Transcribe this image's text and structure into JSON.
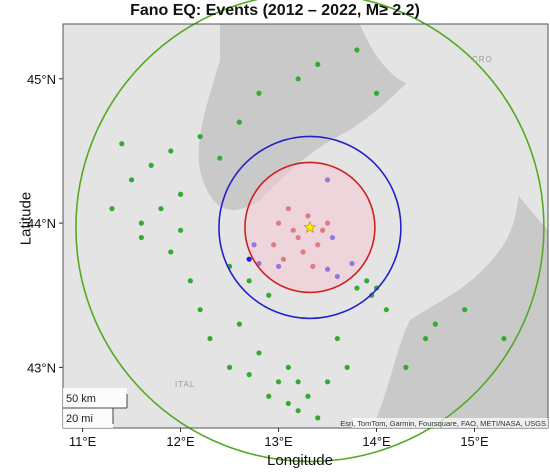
{
  "title": "Fano EQ: Events (2012 – 2022, M≥ 2.2)",
  "xlabel": "Longitude",
  "ylabel": "Latitude",
  "x_ticks": [
    {
      "value": 11,
      "label": "11°E"
    },
    {
      "value": 12,
      "label": "12°E"
    },
    {
      "value": 13,
      "label": "13°E"
    },
    {
      "value": 14,
      "label": "14°E"
    },
    {
      "value": 15,
      "label": "15°E"
    }
  ],
  "y_ticks": [
    {
      "value": 45,
      "label": "45°N"
    },
    {
      "value": 44,
      "label": "44°N"
    },
    {
      "value": 43,
      "label": "43°N"
    }
  ],
  "scalebar": {
    "km_label": "50 km",
    "mi_label": "20 mi"
  },
  "attribution": "Esri, TomTom, Garmin, Foursquare, FAO, METI/NASA, USGS",
  "map_labels": {
    "italy": "ITAL",
    "croatia": "CRO"
  },
  "colors": {
    "land": "#e4e4e4",
    "sea": "#c9c9c9",
    "green_events": "#33aa33",
    "blue_events": "#1a1aee",
    "red_events": "#bb2222",
    "outer_circle": "#55aa22",
    "middle_circle": "#2222cc",
    "inner_circle": "#cc2222",
    "inner_fill": "#f6c8d4",
    "epicenter": "#ffee00"
  },
  "chart_data": {
    "type": "scatter",
    "xlim": [
      10.8,
      15.75
    ],
    "ylim": [
      42.58,
      45.38
    ],
    "grid": false,
    "epicenter": {
      "lon": 13.32,
      "lat": 43.97
    },
    "circles_km": [
      {
        "radius_km": 50
      },
      {
        "radius_km": 70
      },
      {
        "radius_km": 180
      }
    ],
    "series": [
      {
        "color": "green",
        "points": [
          [
            11.5,
            44.3
          ],
          [
            11.6,
            44.0
          ],
          [
            11.8,
            44.1
          ],
          [
            11.9,
            43.8
          ],
          [
            12.0,
            44.2
          ],
          [
            12.1,
            43.6
          ],
          [
            12.2,
            43.4
          ],
          [
            12.3,
            43.2
          ],
          [
            12.5,
            43.0
          ],
          [
            12.6,
            43.3
          ],
          [
            12.8,
            43.1
          ],
          [
            12.9,
            42.8
          ],
          [
            13.0,
            42.9
          ],
          [
            13.1,
            42.75
          ],
          [
            13.2,
            42.7
          ],
          [
            13.3,
            42.8
          ],
          [
            13.4,
            42.65
          ],
          [
            13.2,
            42.9
          ],
          [
            13.1,
            43.0
          ],
          [
            12.7,
            42.95
          ],
          [
            11.7,
            44.4
          ],
          [
            12.4,
            44.45
          ],
          [
            11.9,
            44.5
          ],
          [
            12.2,
            44.6
          ],
          [
            12.6,
            44.7
          ],
          [
            12.8,
            44.9
          ],
          [
            13.2,
            45.0
          ],
          [
            13.4,
            45.1
          ],
          [
            13.8,
            45.2
          ],
          [
            14.0,
            44.9
          ],
          [
            13.8,
            43.55
          ],
          [
            13.9,
            43.6
          ],
          [
            14.0,
            43.55
          ],
          [
            13.95,
            43.5
          ],
          [
            14.1,
            43.4
          ],
          [
            14.5,
            43.2
          ],
          [
            14.6,
            43.3
          ],
          [
            14.9,
            43.4
          ],
          [
            15.3,
            43.2
          ],
          [
            14.3,
            43.0
          ],
          [
            11.4,
            44.55
          ],
          [
            11.3,
            44.1
          ],
          [
            11.6,
            43.9
          ],
          [
            12.0,
            43.95
          ],
          [
            12.5,
            43.7
          ],
          [
            12.7,
            43.6
          ],
          [
            12.9,
            43.5
          ],
          [
            13.6,
            43.2
          ],
          [
            13.7,
            43.0
          ],
          [
            13.5,
            42.9
          ]
        ]
      },
      {
        "color": "blue",
        "points": [
          [
            12.7,
            43.75
          ],
          [
            12.8,
            43.72
          ],
          [
            13.0,
            43.7
          ],
          [
            13.5,
            43.68
          ],
          [
            13.6,
            43.63
          ],
          [
            13.75,
            43.72
          ],
          [
            13.55,
            43.9
          ],
          [
            13.5,
            44.3
          ],
          [
            12.75,
            43.85
          ]
        ]
      },
      {
        "color": "red",
        "points": [
          [
            13.0,
            44.0
          ],
          [
            13.1,
            44.1
          ],
          [
            13.2,
            43.9
          ],
          [
            13.3,
            44.05
          ],
          [
            13.4,
            43.85
          ],
          [
            13.5,
            44.0
          ],
          [
            13.35,
            43.7
          ],
          [
            13.25,
            43.8
          ],
          [
            13.15,
            43.95
          ],
          [
            13.45,
            43.95
          ],
          [
            12.95,
            43.85
          ],
          [
            13.05,
            43.75
          ]
        ]
      }
    ]
  }
}
